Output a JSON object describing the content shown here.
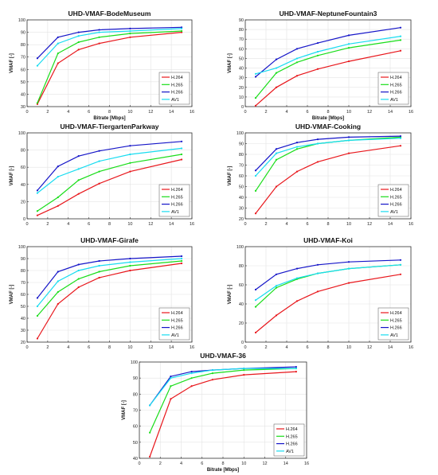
{
  "series_names": [
    "H.264",
    "H.265",
    "H.266",
    "AV1"
  ],
  "series_colors": [
    "#e8161b",
    "#19dd19",
    "#1515c8",
    "#18dcf0"
  ],
  "chart_data": [
    {
      "type": "line",
      "title": "UHD-VMAF-BodeMuseum",
      "xlabel": "Bitrate [Mbps]",
      "ylabel": "VMAF [-]",
      "xlim": [
        0,
        16
      ],
      "ylim": [
        30,
        100
      ],
      "xticks": [
        0,
        2,
        4,
        6,
        8,
        10,
        12,
        14,
        16
      ],
      "yticks": [
        30,
        40,
        50,
        60,
        70,
        80,
        90,
        100
      ],
      "grid": true,
      "legend": "bottom-right",
      "x": [
        1,
        3,
        5,
        7,
        10,
        15
      ],
      "series": [
        {
          "name": "H.264",
          "values": [
            32,
            65,
            76,
            81,
            86,
            90
          ]
        },
        {
          "name": "H.265",
          "values": [
            33,
            73,
            82,
            86,
            89,
            91
          ]
        },
        {
          "name": "H.266",
          "values": [
            69,
            86,
            90,
            92,
            93,
            94
          ]
        },
        {
          "name": "AV1",
          "values": [
            63,
            81,
            87,
            90,
            91,
            93
          ]
        }
      ]
    },
    {
      "type": "line",
      "title": "UHD-VMAF-NeptuneFountain3",
      "xlabel": "Bitrate [Mbps]",
      "ylabel": "VMAF [-]",
      "xlim": [
        0,
        16
      ],
      "ylim": [
        0,
        90
      ],
      "xticks": [
        0,
        2,
        4,
        6,
        8,
        10,
        12,
        14,
        16
      ],
      "yticks": [
        0,
        10,
        20,
        30,
        40,
        50,
        60,
        70,
        80,
        90
      ],
      "grid": true,
      "legend": "bottom-right",
      "x": [
        1,
        3,
        5,
        7,
        10,
        15
      ],
      "series": [
        {
          "name": "H.264",
          "values": [
            1,
            20,
            32,
            39,
            47,
            58
          ]
        },
        {
          "name": "H.265",
          "values": [
            9,
            35,
            46,
            53,
            61,
            69
          ]
        },
        {
          "name": "H.266",
          "values": [
            31,
            49,
            60,
            66,
            74,
            82
          ]
        },
        {
          "name": "AV1",
          "values": [
            34,
            40,
            50,
            57,
            65,
            73
          ]
        }
      ]
    },
    {
      "type": "line",
      "title": "UHD-VMAF-TiergartenParkway",
      "xlabel": "",
      "ylabel": "VMAF [-]",
      "xlim": [
        0,
        16
      ],
      "ylim": [
        0,
        100
      ],
      "xticks": [
        0,
        2,
        4,
        6,
        8,
        10,
        12,
        14,
        16
      ],
      "yticks": [
        0,
        20,
        40,
        60,
        80,
        100
      ],
      "grid": true,
      "legend": "bottom-right",
      "x": [
        1,
        3,
        5,
        7,
        10,
        15
      ],
      "series": [
        {
          "name": "H.264",
          "values": [
            4,
            15,
            29,
            41,
            55,
            69
          ]
        },
        {
          "name": "H.265",
          "values": [
            9,
            25,
            45,
            55,
            65,
            75
          ]
        },
        {
          "name": "H.266",
          "values": [
            33,
            61,
            73,
            79,
            85,
            90
          ]
        },
        {
          "name": "AV1",
          "values": [
            30,
            49,
            58,
            67,
            75,
            82
          ]
        }
      ]
    },
    {
      "type": "line",
      "title": "UHD-VMAF-Cooking",
      "xlabel": "",
      "ylabel": "VMAF [-]",
      "xlim": [
        0,
        16
      ],
      "ylim": [
        20,
        100
      ],
      "xticks": [
        0,
        2,
        4,
        6,
        8,
        10,
        12,
        14,
        16
      ],
      "yticks": [
        20,
        30,
        40,
        50,
        60,
        70,
        80,
        90,
        100
      ],
      "grid": true,
      "legend": "bottom-right",
      "x": [
        1,
        3,
        5,
        7,
        10,
        15
      ],
      "series": [
        {
          "name": "H.264",
          "values": [
            25,
            50,
            64,
            73,
            81,
            88
          ]
        },
        {
          "name": "H.265",
          "values": [
            46,
            75,
            85,
            90,
            93,
            96
          ]
        },
        {
          "name": "H.266",
          "values": [
            65,
            85,
            91,
            94,
            96,
            97
          ]
        },
        {
          "name": "AV1",
          "values": [
            60,
            81,
            87,
            90,
            93,
            95
          ]
        }
      ]
    },
    {
      "type": "line",
      "title": "UHD-VMAF-Girafe",
      "xlabel": "",
      "ylabel": "VMAF [-]",
      "xlim": [
        0,
        16
      ],
      "ylim": [
        20,
        100
      ],
      "xticks": [
        0,
        2,
        4,
        6,
        8,
        10,
        12,
        14,
        16
      ],
      "yticks": [
        20,
        30,
        40,
        50,
        60,
        70,
        80,
        90,
        100
      ],
      "grid": true,
      "legend": "bottom-right",
      "x": [
        1,
        3,
        5,
        7,
        10,
        15
      ],
      "series": [
        {
          "name": "H.264",
          "values": [
            23,
            52,
            66,
            74,
            80,
            86
          ]
        },
        {
          "name": "H.265",
          "values": [
            42,
            62,
            73,
            79,
            84,
            88
          ]
        },
        {
          "name": "H.266",
          "values": [
            57,
            79,
            85,
            88,
            90,
            92
          ]
        },
        {
          "name": "AV1",
          "values": [
            50,
            71,
            80,
            84,
            87,
            90
          ]
        }
      ]
    },
    {
      "type": "line",
      "title": "UHD-VMAF-Koi",
      "xlabel": "",
      "ylabel": "VMAF [-]",
      "xlim": [
        0,
        16
      ],
      "ylim": [
        0,
        100
      ],
      "xticks": [
        0,
        2,
        4,
        6,
        8,
        10,
        12,
        14,
        16
      ],
      "yticks": [
        0,
        20,
        40,
        60,
        80,
        100
      ],
      "grid": true,
      "legend": "bottom-right",
      "x": [
        1,
        3,
        5,
        7,
        10,
        15
      ],
      "series": [
        {
          "name": "H.264",
          "values": [
            10,
            28,
            43,
            53,
            62,
            71
          ]
        },
        {
          "name": "H.265",
          "values": [
            37,
            57,
            66,
            72,
            77,
            81
          ]
        },
        {
          "name": "H.266",
          "values": [
            55,
            71,
            77,
            81,
            84,
            86
          ]
        },
        {
          "name": "AV1",
          "values": [
            44,
            59,
            67,
            72,
            77,
            81
          ]
        }
      ]
    },
    {
      "type": "line",
      "title": "UHD-VMAF-36",
      "xlabel": "Bitrate [Mbps]",
      "ylabel": "VMAF [-]",
      "xlim": [
        0,
        16
      ],
      "ylim": [
        40,
        100
      ],
      "xticks": [
        0,
        2,
        4,
        6,
        8,
        10,
        12,
        14,
        16
      ],
      "yticks": [
        40,
        50,
        60,
        70,
        80,
        90,
        100
      ],
      "grid": true,
      "legend": "bottom-right",
      "x": [
        1,
        3,
        5,
        7,
        10,
        15
      ],
      "series": [
        {
          "name": "H.264",
          "values": [
            41,
            77,
            85,
            89,
            92,
            94
          ]
        },
        {
          "name": "H.265",
          "values": [
            56,
            85,
            90,
            93,
            95,
            96
          ]
        },
        {
          "name": "H.266",
          "values": [
            73,
            91,
            94,
            95,
            96,
            97
          ]
        },
        {
          "name": "AV1",
          "values": [
            73,
            90,
            93,
            95,
            96,
            96
          ]
        }
      ]
    }
  ]
}
